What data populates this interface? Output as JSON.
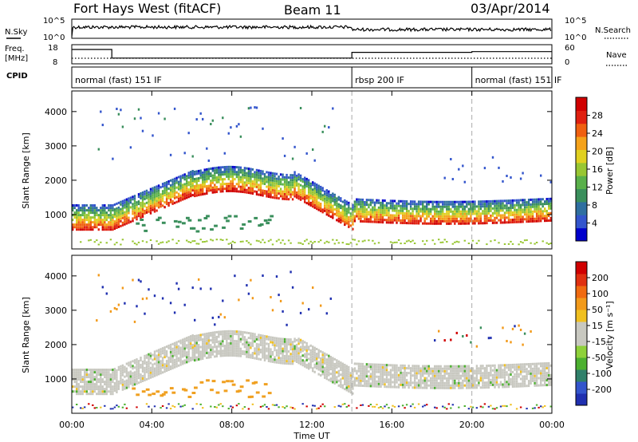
{
  "header": {
    "title": "Fort Hays West (fitACF)",
    "beam": "Beam 11",
    "date": "03/Apr/2014"
  },
  "noise_panel": {
    "left_label": "N.Sky",
    "right_label": "N.Search",
    "left_ticks": [
      "10^5",
      "10^0"
    ],
    "right_ticks": [
      "10^5",
      "10^0"
    ]
  },
  "freq_panel": {
    "left_label_1": "Freq.",
    "left_label_2": "[MHz]",
    "left_ticks": [
      "18",
      "8"
    ],
    "right_label": "Nave",
    "right_ticks": [
      "60",
      "0"
    ],
    "freq_steps": [
      {
        "start": 0,
        "end": 2,
        "level": 18
      },
      {
        "start": 2,
        "end": 14,
        "level": 12
      },
      {
        "start": 14,
        "end": 20,
        "level": 16
      },
      {
        "start": 20,
        "end": 24,
        "level": 16.5
      }
    ]
  },
  "cpid": {
    "label": "CPID",
    "segments": [
      {
        "start": 0,
        "end": 14,
        "text": "normal (fast) 151 IF"
      },
      {
        "start": 14,
        "end": 20,
        "text": "rbsp 200 IF"
      },
      {
        "start": 20,
        "end": 24,
        "text": "normal (fast) 151 IF"
      }
    ]
  },
  "chart_data": [
    {
      "type": "heatmap",
      "name": "power",
      "ylabel": "Slant Range [km]",
      "ylim": [
        0,
        4600
      ],
      "yticks": [
        "4000",
        "3000",
        "2000",
        "1000"
      ],
      "xlim": [
        0,
        24
      ],
      "colorbar_label": "Power [dB]",
      "colorbar_ticks": [
        "28",
        "24",
        "20",
        "16",
        "12",
        "8",
        "4"
      ],
      "colorbar_colors": [
        "#0000cc",
        "#3355cc",
        "#2f6fa0",
        "#3a8f5c",
        "#59b04a",
        "#98c632",
        "#e0d020",
        "#f5a21a",
        "#f06010",
        "#e02010",
        "#d00000"
      ]
    },
    {
      "type": "heatmap",
      "name": "velocity",
      "ylabel": "Slant Range [km]",
      "ylim": [
        0,
        4600
      ],
      "yticks": [
        "4000",
        "3000",
        "2000",
        "1000"
      ],
      "xlim": [
        0,
        24
      ],
      "colorbar_label": "Velocity [m s⁻¹]",
      "colorbar_ticks": [
        "200",
        "100",
        "50",
        "15",
        "-15",
        "-50",
        "-100",
        "-200"
      ],
      "colorbar_colors": [
        "#2030b0",
        "#3355cc",
        "#30806a",
        "#4cb030",
        "#8ed13a",
        "#c8c8c0",
        "#c8c8c0",
        "#f0c020",
        "#f29a1a",
        "#f06a10",
        "#e03010",
        "#d00000"
      ]
    }
  ],
  "x_axis": {
    "label": "Time UT",
    "ticks": [
      "00:00",
      "04:00",
      "08:00",
      "12:00",
      "16:00",
      "20:00",
      "00:00"
    ]
  }
}
